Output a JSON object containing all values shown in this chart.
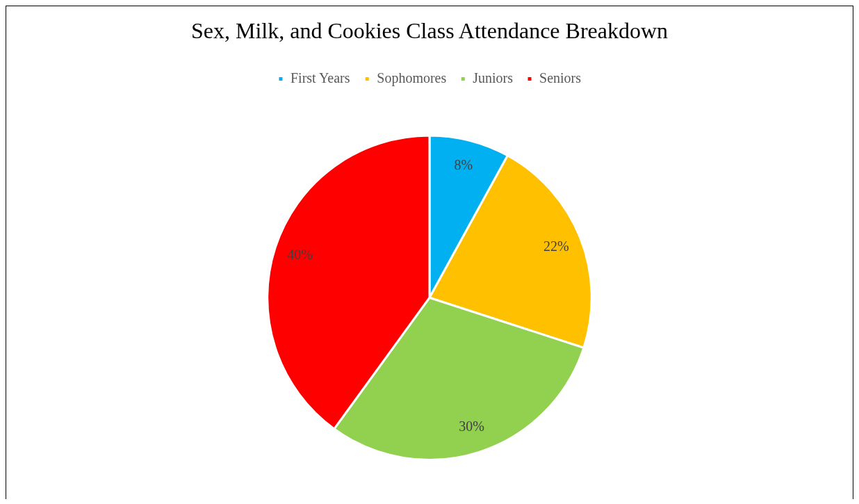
{
  "chart_data": {
    "type": "pie",
    "title": "Sex, Milk, and Cookies Class Attendance Breakdown",
    "categories": [
      "First Years",
      "Sophomores",
      "Juniors",
      "Seniors"
    ],
    "values": [
      8,
      22,
      30,
      40
    ],
    "colors": [
      "#00b0f0",
      "#ffc000",
      "#92d050",
      "#ff0000"
    ],
    "value_labels": [
      "8%",
      "22%",
      "30%",
      "40%"
    ],
    "legend": "top"
  }
}
